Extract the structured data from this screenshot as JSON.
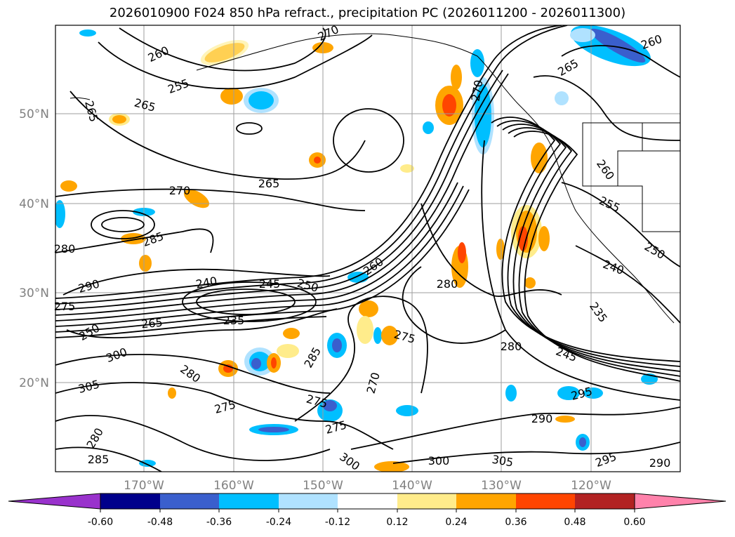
{
  "title": "2026010900 F024 850 hPa refract., precipitation PC (2026011200 - 2026011300)",
  "lat_labels": [
    "50°N",
    "40°N",
    "30°N",
    "20°N"
  ],
  "lon_labels": [
    "170°W",
    "160°W",
    "150°W",
    "140°W",
    "130°W",
    "120°W"
  ],
  "contour_labels": [
    "260",
    "255",
    "265",
    "270",
    "265",
    "270",
    "270",
    "265",
    "265",
    "260",
    "255",
    "250",
    "240",
    "235",
    "285",
    "280",
    "290",
    "275",
    "250",
    "265",
    "235",
    "240",
    "245",
    "250",
    "260",
    "275",
    "285",
    "280",
    "300",
    "305",
    "280",
    "275",
    "270",
    "275",
    "275",
    "290",
    "295",
    "300",
    "305",
    "300",
    "260",
    "285",
    "245",
    "280",
    "295",
    "280",
    "290"
  ],
  "colorbar": {
    "ticks": [
      "-0.60",
      "-0.48",
      "-0.36",
      "-0.24",
      "-0.12",
      "0.12",
      "0.24",
      "0.36",
      "0.48",
      "0.60"
    ],
    "colors": [
      "#9932cc",
      "#00008b",
      "#3a5fcd",
      "#00bfff",
      "#b0e2ff",
      "#ffffff",
      "#ffec8b",
      "#ffa500",
      "#ff4500",
      "#b22222",
      "#ff82ab"
    ]
  }
}
